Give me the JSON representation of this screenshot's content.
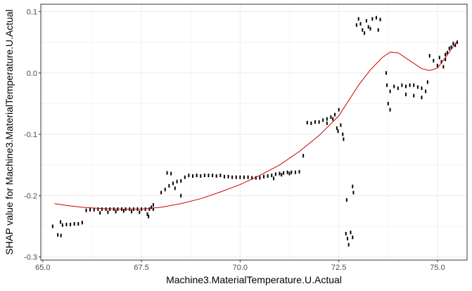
{
  "chart_data": {
    "type": "scatter",
    "title": "",
    "xlabel": "Machine3.MaterialTemperature.U.Actual",
    "ylabel": "SHAP value for Machine3.MaterialTemperature.U.Actual",
    "xlim": [
      64.95,
      75.75
    ],
    "ylim": [
      -0.305,
      0.112
    ],
    "x_ticks": [
      65.0,
      67.5,
      70.0,
      72.5,
      75.0
    ],
    "x_tick_labels": [
      "65.0",
      "67.5",
      "70.0",
      "72.5",
      "75.0"
    ],
    "y_ticks": [
      -0.3,
      -0.2,
      -0.1,
      0.0,
      0.1
    ],
    "y_tick_labels": [
      "-0.3",
      "-0.2",
      "-0.1",
      "0.0",
      "0.1"
    ],
    "grid": true,
    "legend": false,
    "colors": {
      "points": "#000000",
      "smooth": "#cc0000",
      "grid": "#ebebeb",
      "panel_border": "#333333"
    },
    "smooth_line": {
      "x": [
        65.3,
        65.6,
        66.0,
        66.5,
        67.0,
        67.5,
        68.0,
        68.5,
        69.0,
        69.5,
        70.0,
        70.5,
        71.0,
        71.5,
        72.0,
        72.5,
        73.0,
        73.3,
        73.6,
        73.8,
        74.0,
        74.3,
        74.6,
        74.8,
        75.0,
        75.2,
        75.5
      ],
      "y": [
        -0.213,
        -0.216,
        -0.219,
        -0.221,
        -0.222,
        -0.222,
        -0.219,
        -0.213,
        -0.205,
        -0.194,
        -0.182,
        -0.167,
        -0.15,
        -0.128,
        -0.102,
        -0.07,
        -0.02,
        0.005,
        0.025,
        0.034,
        0.033,
        0.02,
        0.007,
        0.004,
        0.008,
        0.025,
        0.052
      ]
    },
    "points": [
      [
        65.25,
        -0.25
      ],
      [
        65.38,
        -0.264
      ],
      [
        65.46,
        -0.265
      ],
      [
        65.45,
        -0.243
      ],
      [
        65.5,
        -0.248
      ],
      [
        65.6,
        -0.247
      ],
      [
        65.7,
        -0.247
      ],
      [
        65.8,
        -0.246
      ],
      [
        65.9,
        -0.246
      ],
      [
        66.0,
        -0.244
      ],
      [
        66.1,
        -0.224
      ],
      [
        66.2,
        -0.223
      ],
      [
        66.3,
        -0.223
      ],
      [
        66.4,
        -0.222
      ],
      [
        66.5,
        -0.222
      ],
      [
        66.6,
        -0.222
      ],
      [
        66.7,
        -0.222
      ],
      [
        66.8,
        -0.222
      ],
      [
        66.9,
        -0.222
      ],
      [
        67.0,
        -0.222
      ],
      [
        67.1,
        -0.222
      ],
      [
        67.2,
        -0.222
      ],
      [
        67.3,
        -0.222
      ],
      [
        67.4,
        -0.222
      ],
      [
        67.5,
        -0.222
      ],
      [
        67.6,
        -0.222
      ],
      [
        67.7,
        -0.222
      ],
      [
        67.8,
        -0.222
      ],
      [
        66.45,
        -0.228
      ],
      [
        66.65,
        -0.227
      ],
      [
        66.85,
        -0.226
      ],
      [
        67.05,
        -0.225
      ],
      [
        67.25,
        -0.226
      ],
      [
        67.45,
        -0.227
      ],
      [
        67.65,
        -0.23
      ],
      [
        67.68,
        -0.234
      ],
      [
        67.8,
        -0.215
      ],
      [
        67.75,
        -0.219
      ],
      [
        68.0,
        -0.195
      ],
      [
        68.1,
        -0.19
      ],
      [
        68.2,
        -0.184
      ],
      [
        68.3,
        -0.18
      ],
      [
        68.4,
        -0.177
      ],
      [
        68.5,
        -0.176
      ],
      [
        68.15,
        -0.163
      ],
      [
        68.25,
        -0.164
      ],
      [
        68.5,
        -0.2
      ],
      [
        68.35,
        -0.188
      ],
      [
        68.6,
        -0.17
      ],
      [
        68.7,
        -0.167
      ],
      [
        68.8,
        -0.168
      ],
      [
        68.9,
        -0.167
      ],
      [
        69.0,
        -0.168
      ],
      [
        69.1,
        -0.167
      ],
      [
        69.2,
        -0.167
      ],
      [
        69.3,
        -0.167
      ],
      [
        69.4,
        -0.168
      ],
      [
        69.5,
        -0.167
      ],
      [
        69.6,
        -0.169
      ],
      [
        69.7,
        -0.169
      ],
      [
        69.8,
        -0.17
      ],
      [
        69.9,
        -0.17
      ],
      [
        70.0,
        -0.17
      ],
      [
        70.1,
        -0.17
      ],
      [
        70.2,
        -0.17
      ],
      [
        70.3,
        -0.171
      ],
      [
        70.4,
        -0.171
      ],
      [
        70.5,
        -0.171
      ],
      [
        70.6,
        -0.169
      ],
      [
        70.7,
        -0.168
      ],
      [
        70.8,
        -0.167
      ],
      [
        70.9,
        -0.165
      ],
      [
        71.0,
        -0.164
      ],
      [
        71.1,
        -0.163
      ],
      [
        71.2,
        -0.162
      ],
      [
        71.3,
        -0.162
      ],
      [
        71.4,
        -0.162
      ],
      [
        71.5,
        -0.161
      ],
      [
        71.6,
        -0.135
      ],
      [
        70.85,
        -0.172
      ],
      [
        71.05,
        -0.166
      ],
      [
        71.25,
        -0.164
      ],
      [
        71.7,
        -0.081
      ],
      [
        71.8,
        -0.082
      ],
      [
        71.9,
        -0.08
      ],
      [
        72.0,
        -0.08
      ],
      [
        72.1,
        -0.077
      ],
      [
        72.2,
        -0.075
      ],
      [
        72.3,
        -0.072
      ],
      [
        72.4,
        -0.068
      ],
      [
        72.5,
        -0.06
      ],
      [
        72.2,
        -0.082
      ],
      [
        72.35,
        -0.075
      ],
      [
        72.45,
        -0.09
      ],
      [
        72.48,
        -0.095
      ],
      [
        72.6,
        -0.1
      ],
      [
        72.62,
        -0.108
      ],
      [
        72.55,
        -0.085
      ],
      [
        72.7,
        -0.207
      ],
      [
        72.85,
        -0.185
      ],
      [
        72.87,
        -0.195
      ],
      [
        72.68,
        -0.262
      ],
      [
        72.72,
        -0.27
      ],
      [
        72.75,
        -0.28
      ],
      [
        72.85,
        -0.268
      ],
      [
        72.8,
        -0.26
      ],
      [
        72.95,
        0.078
      ],
      [
        73.0,
        0.088
      ],
      [
        73.05,
        0.08
      ],
      [
        73.1,
        0.07
      ],
      [
        73.15,
        0.065
      ],
      [
        73.2,
        0.085
      ],
      [
        73.25,
        0.075
      ],
      [
        73.3,
        0.072
      ],
      [
        73.35,
        0.088
      ],
      [
        73.45,
        0.09
      ],
      [
        73.55,
        0.087
      ],
      [
        73.5,
        0.07
      ],
      [
        73.7,
        0.0
      ],
      [
        73.72,
        -0.02
      ],
      [
        73.75,
        -0.05
      ],
      [
        73.8,
        -0.06
      ],
      [
        73.8,
        -0.03
      ],
      [
        73.9,
        -0.022
      ],
      [
        74.0,
        -0.025
      ],
      [
        74.1,
        -0.02
      ],
      [
        74.2,
        -0.022
      ],
      [
        74.3,
        -0.02
      ],
      [
        74.4,
        -0.02
      ],
      [
        74.5,
        -0.023
      ],
      [
        74.6,
        -0.025
      ],
      [
        74.7,
        -0.03
      ],
      [
        74.75,
        -0.015
      ],
      [
        74.2,
        -0.035
      ],
      [
        74.4,
        -0.037
      ],
      [
        74.6,
        -0.04
      ],
      [
        74.8,
        0.028
      ],
      [
        74.9,
        0.02
      ],
      [
        75.0,
        0.012
      ],
      [
        75.05,
        0.025
      ],
      [
        75.1,
        0.018
      ],
      [
        75.2,
        0.03
      ],
      [
        75.25,
        0.033
      ],
      [
        75.3,
        0.04
      ],
      [
        75.35,
        0.042
      ],
      [
        75.4,
        0.048
      ],
      [
        75.5,
        0.05
      ],
      [
        75.45,
        0.045
      ],
      [
        75.15,
        0.01
      ],
      [
        75.2,
        0.022
      ]
    ]
  }
}
